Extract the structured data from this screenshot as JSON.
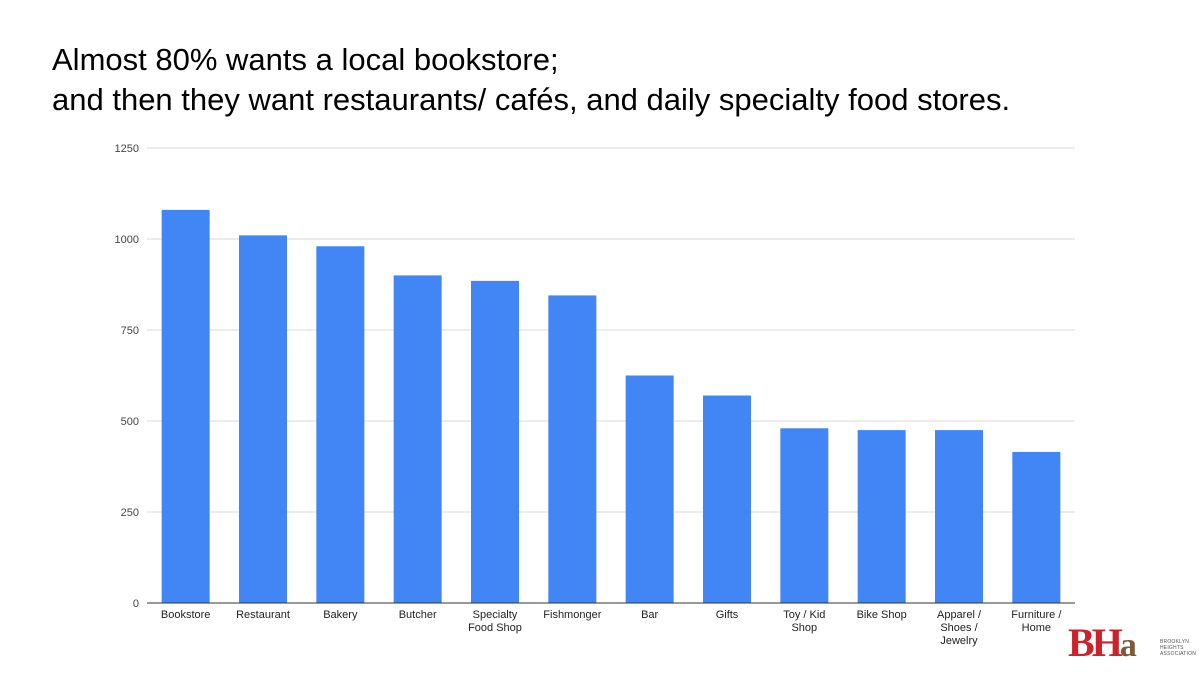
{
  "slide": {
    "title_line1": "Almost 80% wants a local bookstore;",
    "title_line2": "and then they want restaurants/ cafés, and daily specialty food stores."
  },
  "logo": {
    "mark_b": "B",
    "mark_h": "H",
    "mark_a": "a",
    "text_line1": "BROOKLYN",
    "text_line2": "HEIGHTS",
    "text_line3": "ASSOCIATION"
  },
  "chart_data": {
    "type": "bar",
    "categories": [
      "Bookstore",
      "Restaurant",
      "Bakery",
      "Butcher",
      "Specialty Food Shop",
      "Fishmonger",
      "Bar",
      "Gifts",
      "Toy / Kid Shop",
      "Bike Shop",
      "Apparel / Shoes / Jewelry",
      "Furniture / Home"
    ],
    "category_label_lines": [
      [
        "Bookstore"
      ],
      [
        "Restaurant"
      ],
      [
        "Bakery"
      ],
      [
        "Butcher"
      ],
      [
        "Specialty",
        "Food Shop"
      ],
      [
        "Fishmonger"
      ],
      [
        "Bar"
      ],
      [
        "Gifts"
      ],
      [
        "Toy / Kid",
        "Shop"
      ],
      [
        "Bike Shop"
      ],
      [
        "Apparel /",
        "Shoes /",
        "Jewelry"
      ],
      [
        "Furniture /",
        "Home"
      ]
    ],
    "values": [
      1080,
      1010,
      980,
      900,
      885,
      845,
      625,
      570,
      480,
      475,
      475,
      415
    ],
    "ylim": [
      0,
      1250
    ],
    "yticks": [
      0,
      250,
      500,
      750,
      1000,
      1250
    ],
    "grid": true,
    "bar_color": "#4285f4",
    "grid_color": "#d9d9d9",
    "axis_color": "#333333",
    "xlabel": "",
    "ylabel": ""
  }
}
